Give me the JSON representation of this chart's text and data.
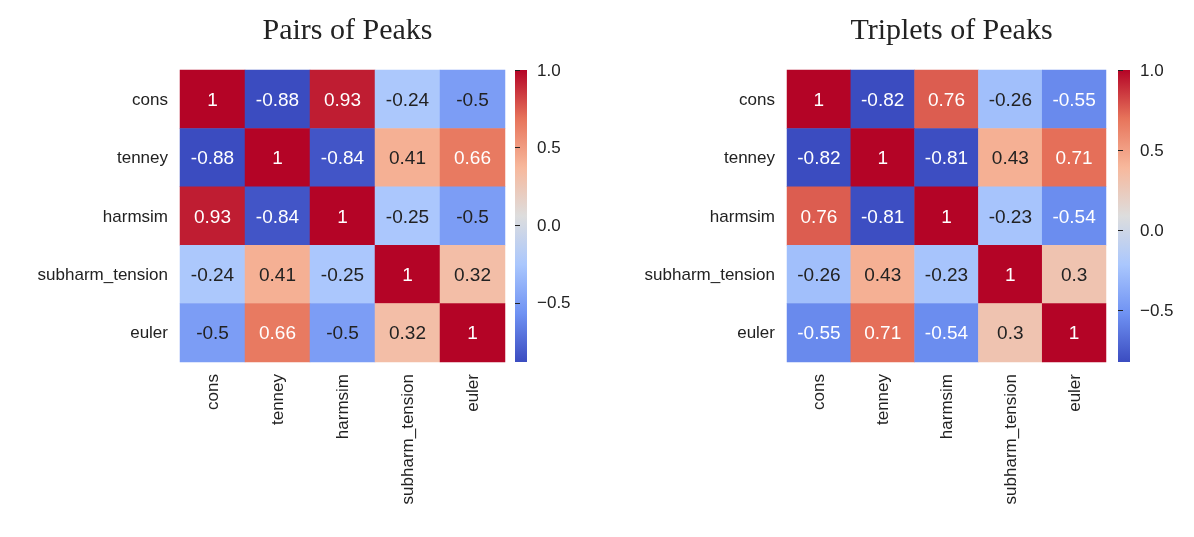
{
  "chart_data": [
    {
      "type": "heatmap",
      "title": "Pairs of Peaks",
      "categories": [
        "cons",
        "tenney",
        "harmsim",
        "subharm_tension",
        "euler"
      ],
      "y_categories": [
        "cons",
        "tenney",
        "harmsim",
        "subharm_tension",
        "euler"
      ],
      "cells": [
        [
          1,
          -0.88,
          0.93,
          -0.24,
          -0.5
        ],
        [
          -0.88,
          1,
          -0.84,
          0.41,
          0.66
        ],
        [
          0.93,
          -0.84,
          1,
          -0.25,
          -0.5
        ],
        [
          -0.24,
          0.41,
          -0.25,
          1,
          0.32
        ],
        [
          -0.5,
          0.66,
          -0.5,
          0.32,
          1
        ]
      ],
      "data_labels": true,
      "clim": [
        -0.88,
        1
      ],
      "cticks": [
        {
          "value": -0.5,
          "label": "−0.5"
        },
        {
          "value": 0,
          "label": "0.0"
        },
        {
          "value": 0.5,
          "label": "0.5"
        },
        {
          "value": 1,
          "label": "1.0"
        }
      ]
    },
    {
      "type": "heatmap",
      "title": "Triplets of Peaks",
      "categories": [
        "cons",
        "tenney",
        "harmsim",
        "subharm_tension",
        "euler"
      ],
      "y_categories": [
        "cons",
        "tenney",
        "harmsim",
        "subharm_tension",
        "euler"
      ],
      "cells": [
        [
          1,
          -0.82,
          0.76,
          -0.26,
          -0.55
        ],
        [
          -0.82,
          1,
          -0.81,
          0.43,
          0.71
        ],
        [
          0.76,
          -0.81,
          1,
          -0.23,
          -0.54
        ],
        [
          -0.26,
          0.43,
          -0.23,
          1,
          0.3
        ],
        [
          -0.55,
          0.71,
          -0.54,
          0.3,
          1
        ]
      ],
      "data_labels": true,
      "clim": [
        -0.82,
        1
      ],
      "cticks": [
        {
          "value": -0.5,
          "label": "−0.5"
        },
        {
          "value": 0,
          "label": "0.0"
        },
        {
          "value": 0.5,
          "label": "0.5"
        },
        {
          "value": 1,
          "label": "1.0"
        }
      ]
    }
  ]
}
